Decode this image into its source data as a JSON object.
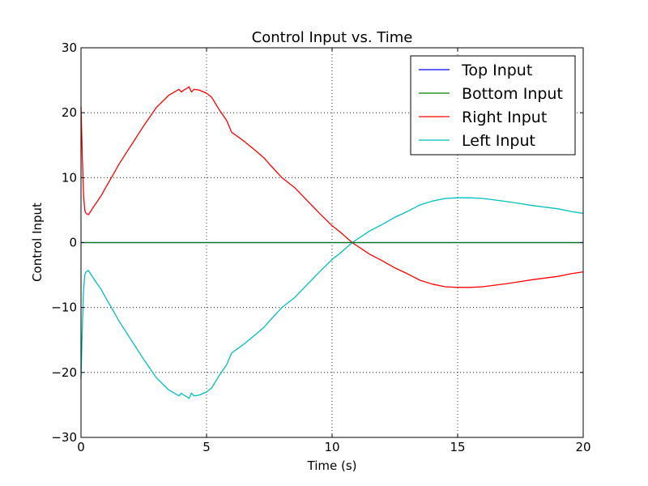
{
  "chart_data": {
    "type": "line",
    "title": "Control Input vs. Time",
    "xlabel": "Time (s)",
    "ylabel": "Control Input",
    "xlim": [
      0,
      20
    ],
    "ylim": [
      -30,
      30
    ],
    "xticks": [
      0,
      5,
      10,
      15,
      20
    ],
    "xtick_labels": [
      "0",
      "5",
      "10",
      "15",
      "20"
    ],
    "yticks": [
      -30,
      -20,
      -10,
      0,
      10,
      20,
      30
    ],
    "ytick_labels": [
      "−30",
      "−20",
      "−10",
      "0",
      "10",
      "20",
      "30"
    ],
    "grid": true,
    "legend_position": "top-right",
    "series": [
      {
        "name": "Top Input",
        "color": "#0000ff",
        "x": [
          0,
          20
        ],
        "y": [
          0,
          0
        ]
      },
      {
        "name": "Bottom Input",
        "color": "#008000",
        "x": [
          0,
          20
        ],
        "y": [
          0,
          0
        ]
      },
      {
        "name": "Right Input",
        "color": "#ff0000",
        "x": [
          0,
          0.05,
          0.1,
          0.15,
          0.2,
          0.3,
          0.5,
          0.8,
          1.0,
          1.3,
          1.5,
          2.0,
          2.5,
          3.0,
          3.5,
          3.9,
          4.0,
          4.1,
          4.2,
          4.3,
          4.4,
          4.5,
          4.7,
          5.0,
          5.2,
          5.5,
          5.8,
          6.0,
          6.5,
          7.0,
          7.3,
          7.5,
          8.0,
          8.5,
          9.0,
          9.5,
          10.0,
          10.3,
          10.8,
          11.5,
          12.0,
          12.5,
          13.0,
          13.5,
          14.0,
          14.5,
          15.0,
          15.5,
          16.0,
          17.0,
          18.0,
          19.0,
          19.5,
          20.0
        ],
        "y": [
          21.0,
          13.5,
          7.5,
          5.0,
          4.5,
          4.3,
          5.5,
          7.2,
          8.6,
          10.6,
          12.0,
          15.0,
          18.0,
          20.8,
          22.7,
          23.6,
          23.2,
          23.5,
          23.7,
          24.0,
          23.2,
          23.6,
          23.5,
          23.0,
          22.4,
          20.5,
          18.8,
          17.0,
          15.6,
          14.0,
          13.0,
          12.1,
          10.0,
          8.5,
          6.5,
          4.5,
          2.6,
          1.7,
          0.0,
          -1.8,
          -2.8,
          -3.9,
          -4.8,
          -5.8,
          -6.4,
          -6.8,
          -6.9,
          -6.9,
          -6.8,
          -6.3,
          -5.7,
          -5.2,
          -4.8,
          -4.5
        ]
      },
      {
        "name": "Left Input",
        "color": "#00bfbf",
        "x": [
          0,
          0.05,
          0.1,
          0.15,
          0.2,
          0.3,
          0.5,
          0.8,
          1.0,
          1.3,
          1.5,
          2.0,
          2.5,
          3.0,
          3.5,
          3.9,
          4.0,
          4.1,
          4.2,
          4.3,
          4.4,
          4.5,
          4.7,
          5.0,
          5.2,
          5.5,
          5.8,
          6.0,
          6.5,
          7.0,
          7.3,
          7.5,
          8.0,
          8.5,
          9.0,
          9.5,
          10.0,
          10.3,
          10.8,
          11.5,
          12.0,
          12.5,
          13.0,
          13.5,
          14.0,
          14.5,
          15.0,
          15.5,
          16.0,
          17.0,
          18.0,
          19.0,
          19.5,
          20.0
        ],
        "y": [
          -21.0,
          -13.5,
          -7.5,
          -5.0,
          -4.5,
          -4.3,
          -5.5,
          -7.2,
          -8.6,
          -10.6,
          -12.0,
          -15.0,
          -18.0,
          -20.8,
          -22.7,
          -23.6,
          -23.2,
          -23.5,
          -23.7,
          -24.0,
          -23.2,
          -23.6,
          -23.5,
          -23.0,
          -22.4,
          -20.5,
          -18.8,
          -17.0,
          -15.6,
          -14.0,
          -13.0,
          -12.1,
          -10.0,
          -8.5,
          -6.5,
          -4.5,
          -2.6,
          -1.7,
          0.0,
          1.8,
          2.8,
          3.9,
          4.8,
          5.8,
          6.4,
          6.8,
          6.9,
          6.9,
          6.8,
          6.3,
          5.7,
          5.2,
          4.8,
          4.5
        ]
      }
    ]
  }
}
